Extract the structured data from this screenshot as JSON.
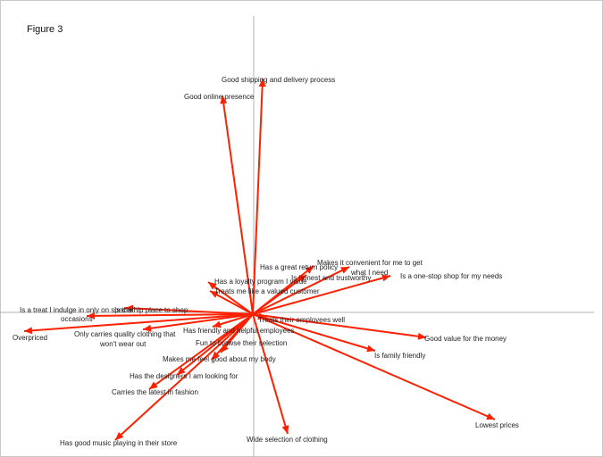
{
  "figure_label": "Figure 3",
  "chart_data": {
    "type": "biplot",
    "title": "Figure 3",
    "axes": {
      "x_range": [
        -2.8,
        3.9
      ],
      "y_range": [
        -1.6,
        3.3
      ],
      "grid": false
    },
    "colors": {
      "arrow": "#ff2000",
      "axis": "#b0b0b0",
      "text": "#222222"
    },
    "vectors": [
      {
        "label": "Good shipping and delivery process",
        "x": 0.11,
        "y": 2.64
      },
      {
        "label": "Good online presence",
        "x": -0.34,
        "y": 2.45
      },
      {
        "label": "Has a great return policy",
        "x": 0.68,
        "y": 0.54
      },
      {
        "label": "Makes it convenient for me to get what I need",
        "lines": [
          "Makes it convenient for me to get",
          "what I need"
        ],
        "x": 1.08,
        "y": 0.53
      },
      {
        "label": "Is honest and trustworthy",
        "x": 0.6,
        "y": 0.44
      },
      {
        "label": "Is a one-stop shop for my needs",
        "x": 1.54,
        "y": 0.43
      },
      {
        "label": "Has a loyalty program I value",
        "x": -0.5,
        "y": 0.36
      },
      {
        "label": "Treats me like a valued customer",
        "x": -0.48,
        "y": 0.26
      },
      {
        "label": "Is the hip place to shop",
        "x": -1.43,
        "y": 0.07
      },
      {
        "label": "Is a treat I indulge in only on special occasions",
        "lines": [
          "Is a treat I indulge in only on special",
          "occasions"
        ],
        "x": -1.86,
        "y": -0.02
      },
      {
        "label": "Overpriced",
        "x": -2.56,
        "y": -0.19
      },
      {
        "label": "Only carries quality clothing that won't wear out",
        "lines": [
          "Only carries quality clothing that",
          "won't wear out"
        ],
        "x": -1.23,
        "y": -0.17
      },
      {
        "label": "Treats their employees well",
        "x": 0.15,
        "y": -0.05
      },
      {
        "label": "Has friendly and helpful employees",
        "x": -0.45,
        "y": -0.14
      },
      {
        "label": "Fun to browse their selection",
        "x": -0.36,
        "y": -0.43
      },
      {
        "label": "Makes me feel good about my body",
        "x": -0.46,
        "y": -0.51
      },
      {
        "label": "Has the designers I am looking for",
        "x": -0.85,
        "y": -0.68
      },
      {
        "label": "Carries the latest in fashion",
        "x": -1.16,
        "y": -0.84
      },
      {
        "label": "Has good music playing in their store",
        "x": -1.54,
        "y": -1.41
      },
      {
        "label": "Wide selection of clothing",
        "x": 0.39,
        "y": -1.34
      },
      {
        "label": "Lowest prices",
        "x": 2.71,
        "y": -1.18
      },
      {
        "label": "Good value for the money",
        "x": 1.94,
        "y": -0.26
      },
      {
        "label": "Is family friendly",
        "x": 1.37,
        "y": -0.41
      }
    ]
  }
}
